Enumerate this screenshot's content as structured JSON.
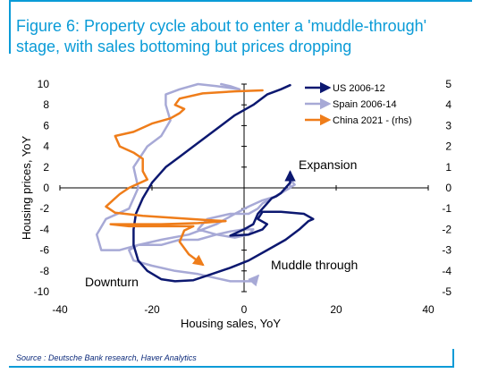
{
  "title": "Figure 6: Property cycle about to enter a 'muddle-through' stage, with sales bottoming but prices dropping",
  "source": "Source : Deutsche Bank research, Haver Analytics",
  "colors": {
    "title": "#0a9bd7",
    "us": "#0c1870",
    "spain": "#a7a9d6",
    "china": "#ef7d1a",
    "source": "#0c2a7a"
  },
  "chart_data": {
    "type": "line",
    "xlabel": "Housing sales, YoY",
    "ylabel": "Housing prices, YoY",
    "xlim": [
      -40,
      40
    ],
    "ylim": [
      -10,
      10
    ],
    "ylim_right": [
      -5,
      5
    ],
    "x_ticks": [
      -40,
      -20,
      0,
      20,
      40
    ],
    "y_ticks": [
      -10,
      -8,
      -6,
      -4,
      -2,
      0,
      2,
      4,
      6,
      8,
      10
    ],
    "y_ticks_right": [
      -5,
      -4,
      -3,
      -2,
      -1,
      0,
      1,
      2,
      3,
      4,
      5
    ],
    "grid": false,
    "legend_position": "top-right",
    "annotations": [
      "Expansion",
      "Muddle through",
      "Downturn"
    ],
    "series": [
      {
        "name": "US 2006-12",
        "axis": "left",
        "arrow": "start",
        "points": [
          [
            10,
            9.9
          ],
          [
            8,
            9.5
          ],
          [
            5,
            9.0
          ],
          [
            2,
            8.0
          ],
          [
            -2,
            7.0
          ],
          [
            -5,
            6.0
          ],
          [
            -8,
            5.0
          ],
          [
            -11,
            4.0
          ],
          [
            -14,
            3.0
          ],
          [
            -17,
            2.0
          ],
          [
            -20,
            0.5
          ],
          [
            -22,
            -1.0
          ],
          [
            -23.5,
            -2.5
          ],
          [
            -24,
            -4.0
          ],
          [
            -24,
            -5.5
          ],
          [
            -23,
            -7.0
          ],
          [
            -21,
            -8.0
          ],
          [
            -18,
            -8.8
          ],
          [
            -15,
            -9.0
          ],
          [
            -11,
            -8.9
          ],
          [
            -7,
            -8.3
          ],
          [
            -3,
            -7.7
          ],
          [
            1,
            -7.0
          ],
          [
            5,
            -6.0
          ],
          [
            9,
            -5.0
          ],
          [
            12,
            -4.0
          ],
          [
            14,
            -3.2
          ],
          [
            15,
            -3.0
          ],
          [
            13,
            -2.5
          ],
          [
            8,
            -2.3
          ],
          [
            4,
            -2.3
          ],
          [
            3,
            -3.0
          ],
          [
            5,
            -3.5
          ],
          [
            4,
            -4.0
          ],
          [
            1,
            -4.5
          ],
          [
            -3,
            -4.6
          ],
          [
            0,
            -4.0
          ],
          [
            2,
            -3.5
          ],
          [
            3,
            -2.5
          ],
          [
            4,
            -2.0
          ],
          [
            5,
            -1.5
          ],
          [
            6,
            -1.0
          ],
          [
            7,
            -0.8
          ],
          [
            8,
            -0.5
          ],
          [
            9,
            0
          ],
          [
            10,
            0.5
          ],
          [
            10,
            1.5
          ]
        ]
      },
      {
        "name": "Spain 2006-14",
        "axis": "left",
        "arrow": "start",
        "points": [
          [
            -5,
            10.0
          ],
          [
            -3,
            9.8
          ],
          [
            -1,
            9.5
          ],
          [
            -6,
            9.8
          ],
          [
            -10,
            10.0
          ],
          [
            -14,
            9.5
          ],
          [
            -17,
            9.0
          ],
          [
            -17,
            8.0
          ],
          [
            -16,
            6.5
          ],
          [
            -18,
            5.0
          ],
          [
            -21,
            4.0
          ],
          [
            -24,
            2.0
          ],
          [
            -23,
            0
          ],
          [
            -25,
            -2.0
          ],
          [
            -30,
            -3.0
          ],
          [
            -32,
            -4.5
          ],
          [
            -31,
            -6.0
          ],
          [
            -27,
            -6.0
          ],
          [
            -23,
            -5.5
          ],
          [
            -18,
            -5.5
          ],
          [
            -14,
            -5.0
          ],
          [
            -10,
            -5.0
          ],
          [
            -6,
            -4.5
          ],
          [
            -3,
            -4.2
          ],
          [
            0,
            -4.0
          ],
          [
            2,
            -4.0
          ],
          [
            1,
            -4.5
          ],
          [
            -2,
            -4.8
          ],
          [
            -6,
            -4.5
          ],
          [
            -10,
            -4.0
          ],
          [
            -8,
            -3.0
          ],
          [
            -3,
            -2.5
          ],
          [
            1,
            -2.5
          ],
          [
            3,
            -2.0
          ],
          [
            4,
            -1.5
          ],
          [
            6,
            -1.0
          ],
          [
            8,
            -0.5
          ],
          [
            10,
            0
          ],
          [
            10,
            0.8
          ],
          [
            11,
            0.3
          ],
          [
            7,
            -0.8
          ],
          [
            4,
            -1.2
          ],
          [
            1,
            -1.8
          ],
          [
            -2,
            -2.5
          ],
          [
            -6,
            -3.5
          ],
          [
            -12,
            -4.5
          ],
          [
            -18,
            -5.0
          ],
          [
            -23,
            -5.5
          ],
          [
            -25,
            -6.0
          ],
          [
            -24,
            -7.0
          ],
          [
            -20,
            -7.5
          ],
          [
            -15,
            -8.0
          ],
          [
            -10,
            -8.3
          ],
          [
            -7,
            -8.6
          ],
          [
            -3,
            -9.0
          ],
          [
            0,
            -9.0
          ],
          [
            2,
            -9.0
          ],
          [
            3,
            -8.5
          ]
        ]
      },
      {
        "name": "China 2021 - (rhs)",
        "axis": "right",
        "arrow": "end",
        "points": [
          [
            4,
            4.7
          ],
          [
            -2,
            4.65
          ],
          [
            -9,
            4.55
          ],
          [
            -14,
            4.3
          ],
          [
            -15,
            4.0
          ],
          [
            -13,
            3.8
          ],
          [
            -14,
            3.6
          ],
          [
            -16,
            3.35
          ],
          [
            -20,
            3.1
          ],
          [
            -24,
            2.7
          ],
          [
            -28,
            2.5
          ],
          [
            -27,
            2.0
          ],
          [
            -24,
            1.7
          ],
          [
            -22,
            1.4
          ],
          [
            -22,
            0.8
          ],
          [
            -21,
            0.4
          ],
          [
            -25,
            0
          ],
          [
            -27,
            -0.3
          ],
          [
            -30,
            -0.9
          ],
          [
            -28,
            -1.2
          ],
          [
            -22,
            -1.35
          ],
          [
            -15,
            -1.45
          ],
          [
            -8,
            -1.55
          ],
          [
            -4,
            -1.6
          ],
          [
            -10,
            -1.7
          ],
          [
            -18,
            -1.75
          ],
          [
            -24,
            -1.75
          ],
          [
            -29,
            -1.75
          ],
          [
            -25,
            -1.85
          ],
          [
            -17,
            -1.85
          ],
          [
            -11,
            -1.85
          ],
          [
            -13,
            -2.05
          ],
          [
            -14,
            -2.6
          ],
          [
            -12,
            -3.2
          ],
          [
            -9,
            -3.7
          ]
        ]
      }
    ]
  }
}
